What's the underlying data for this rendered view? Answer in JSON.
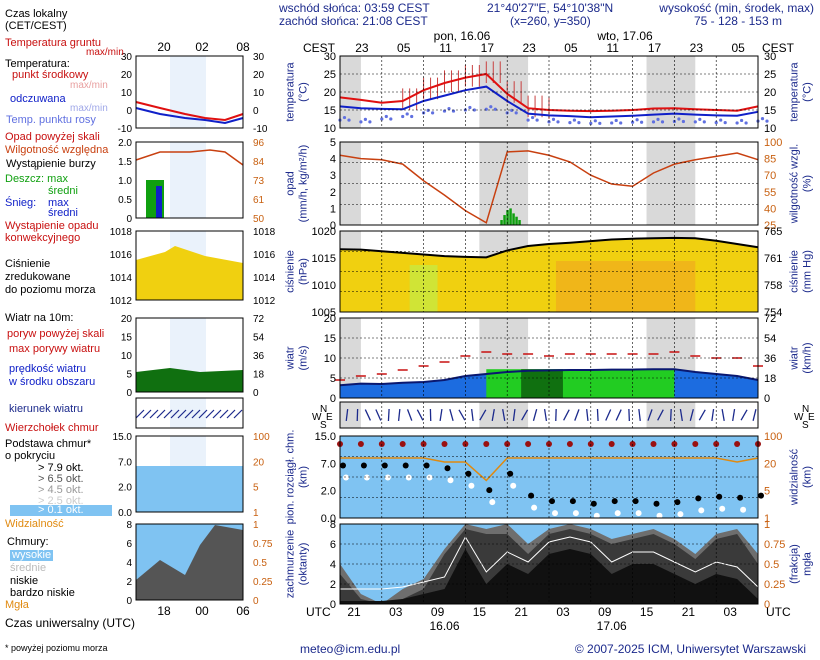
{
  "header": {
    "sunrise": "wschód słońca: 03:59 CEST",
    "sunset": "zachód słońca: 21:08 CEST",
    "coords": "21°40'27\"E, 54°10'38\"N",
    "grid": "(x=260, y=350)",
    "elev_title": "wysokość (min, środek, max)",
    "elev_values": "75 - 128 - 153 m"
  },
  "time_axis": {
    "cest_label": "CEST",
    "utc_label": "UTC",
    "top_hours": [
      "23",
      "05",
      "11",
      "17",
      "23",
      "05",
      "11",
      "17",
      "23",
      "05"
    ],
    "bottom_hours": [
      "21",
      "03",
      "09",
      "15",
      "21",
      "03",
      "09",
      "15",
      "21",
      "03"
    ],
    "days": [
      "pon, 16.06",
      "wto, 17.06"
    ],
    "bottom_dates": [
      "16.06",
      "17.06"
    ],
    "night_bands": [
      [
        0,
        3
      ],
      [
        20,
        27
      ],
      [
        44,
        51
      ]
    ],
    "total_hours": 60
  },
  "legend": {
    "time_title": "Czas lokalny\n(CET/CEST)",
    "time_hours": [
      "20",
      "02",
      "08"
    ],
    "temp_ground": "Temperatura gruntu",
    "temp_ground_range": "max/min",
    "temp_title": "Temperatura:",
    "temp_mid": "punkt środkowy",
    "temp_minmax": "max/min",
    "temp_felt": "odczuwana",
    "temp_felt_minmax": "max/min",
    "temp_dew": "Temp. punktu rosy",
    "temp_ticks": [
      "30",
      "20",
      "10",
      "0",
      "-10"
    ],
    "precip_over": "Opad powyżej skali",
    "humidity": "Wilgotność względna",
    "storm": "Wystąpienie burzy",
    "rain": "Deszcz: max",
    "rain_mean": "średni",
    "snow": "Śnieg:",
    "snow_max": "max",
    "snow_mean": "średni",
    "conv": "Wystąpienie opadu\nkonwekcyjnego",
    "precip_ticks": [
      "2.0",
      "1.5",
      "1.0",
      "0.5",
      "0"
    ],
    "humid_ticks": [
      "96",
      "84",
      "73",
      "61",
      "50"
    ],
    "pressure_title": "Ciśnienie\nzredukowane\ndo poziomu morza",
    "press_ticks": [
      "1018",
      "1016",
      "1014",
      "1012"
    ],
    "wind_title": "Wiatr na 10m:",
    "gust_over": "poryw powyżej skali",
    "gust_max": "max porywy wiatru",
    "wind_speed": "prędkość wiatru\nw środku obszaru",
    "wind_ticks": [
      "20",
      "15",
      "10",
      "5",
      "0"
    ],
    "wind_kmh_ticks": [
      "72",
      "54",
      "36",
      "18",
      "0"
    ],
    "wind_dir": "kierunek wiatru",
    "cloud_top": "Wierzchołek chmur",
    "cloud_base": "Podstawa chmur*\no pokryciu",
    "okta_79": "> 7.9 okt.",
    "okta_65": "> 6.5 okt.",
    "okta_45": "> 4.5 okt.",
    "okta_25": "> 2.5 okt.",
    "okta_01": "> 0.1 okt.",
    "cloud_ticks": [
      "15.0",
      "7.0",
      "2.0",
      "0.0"
    ],
    "vis_ticks": [
      "100",
      "20",
      "5",
      "1"
    ],
    "visibility": "Widzialność",
    "clouds": "Chmury:",
    "cl_high": "wysokie",
    "cl_mid": "średnie",
    "cl_low": "niskie",
    "cl_vlow": "bardzo niskie",
    "fog": "Mgła",
    "okta_ticks": [
      "8",
      "6",
      "4",
      "2",
      "0"
    ],
    "frac_ticks": [
      "1",
      "0.75",
      "0.5",
      "0.25",
      "0"
    ],
    "utc_title": "Czas uniwersalny (UTC)",
    "utc_hours": [
      "18",
      "00",
      "06"
    ],
    "footnote": "* powyżej poziomu morza"
  },
  "panels": {
    "temp": {
      "left": "temperatura\n(°C)",
      "right": "temperatura\n(°C)",
      "ticks": [
        "30",
        "25",
        "20",
        "15",
        "10"
      ]
    },
    "precip": {
      "left": "opad\n(mm/h, kg/m²/h)",
      "right": "wilgotność wzgl.\n(%)",
      "ticks": [
        "5",
        "4",
        "3",
        "2",
        "1",
        "0"
      ],
      "rticks": [
        "100",
        "85",
        "70",
        "55",
        "40",
        "25"
      ]
    },
    "press": {
      "left": "ciśnienie\n(hPa)",
      "right": "ciśnienie\n(mm Hg)",
      "ticks": [
        "1020",
        "1015",
        "1010",
        "1005"
      ],
      "rticks": [
        "765",
        "761",
        "758",
        "754"
      ]
    },
    "wind": {
      "left": "wiatr\n(m/s)",
      "right": "wiatr\n(km/h)",
      "ticks": [
        "20",
        "15",
        "10",
        "5",
        "0"
      ],
      "rticks": [
        "72",
        "54",
        "36",
        "18",
        "0"
      ]
    },
    "dir": {
      "compass": [
        "N",
        "W",
        "E",
        "S"
      ]
    },
    "cloud": {
      "left": "pion. rozciągł. chm.\n(km)",
      "right": "widzialność\n(km)",
      "ticks": [
        "15.0",
        "7.0",
        "2.0",
        "0.0"
      ],
      "rticks": [
        "100",
        "20",
        "5",
        "1"
      ]
    },
    "cover": {
      "left": "zachmurzenie\n(oktanty)",
      "right": "(frakcja)\nmgła",
      "ticks": [
        "8",
        "6",
        "4",
        "2",
        "0"
      ],
      "rticks": [
        "1",
        "0.75",
        "0.5",
        "0.25",
        "0"
      ]
    }
  },
  "footer": {
    "email": "meteo@icm.edu.pl",
    "copyright": "© 2007-2025 ICM, Uniwersytet Warszawski"
  },
  "colors": {
    "temp": "#e01010",
    "felt": "#1020c8",
    "dew": "#6070e0",
    "humidity": "#c84010",
    "rain": "#10a010",
    "pressure": "#f0d010",
    "wind_light": "#22cc22",
    "wind_dark": "#107010",
    "wind_blue": "#1c6ce0",
    "sky": "#7fc3f2",
    "visibility": "#e08a10",
    "night": "#d9d9d9"
  },
  "chart_data": [
    {
      "type": "line",
      "name": "temperature",
      "x_unit": "hours from 16.06 21 UTC",
      "x": [
        0,
        3,
        6,
        9,
        12,
        15,
        18,
        21,
        24,
        27,
        30,
        33,
        36,
        39,
        42,
        45,
        48,
        51,
        54,
        57,
        60
      ],
      "series": [
        {
          "values": [
            18.5,
            17.8,
            17,
            17.5,
            20.5,
            22.5,
            24,
            25,
            19.5,
            15.5,
            15,
            14.8,
            14.7,
            14.8,
            15,
            15.4,
            15.5,
            15.2,
            15,
            14.8,
            16
          ]
        },
        {
          "values": [
            16,
            15.5,
            15.3,
            15.2,
            17.5,
            19,
            20.5,
            21.5,
            17.5,
            14,
            13.5,
            13.3,
            13,
            13.2,
            13.4,
            13.7,
            14,
            13.7,
            13.5,
            13.4,
            14.5
          ]
        },
        {
          "values": [
            12.5,
            12,
            12.8,
            13.5,
            14.5,
            15,
            15.3,
            15.5,
            14.5,
            12.5,
            12,
            11.8,
            11.6,
            11.7,
            11.9,
            12,
            12.1,
            12,
            11.8,
            11.7,
            12.2
          ]
        }
      ],
      "ylim": [
        10,
        30
      ]
    },
    {
      "type": "bar",
      "name": "precip_humidity",
      "x": [
        0,
        3,
        6,
        9,
        12,
        15,
        18,
        21,
        24,
        27,
        30,
        33,
        36,
        39,
        42,
        45,
        48,
        51,
        54,
        57,
        60
      ],
      "series": [
        {
          "values": [
            0,
            0,
            0,
            0,
            0,
            0,
            0,
            0,
            0.4,
            0.9,
            0.5,
            0,
            0,
            0,
            0,
            0,
            0,
            0,
            0,
            0,
            0
          ]
        },
        {
          "values": [
            88,
            85,
            84,
            80,
            65,
            52,
            38,
            27,
            91,
            92,
            88,
            82,
            70,
            62,
            60,
            72,
            80,
            84,
            87,
            90,
            84
          ]
        }
      ],
      "ylim": [
        0,
        5
      ],
      "y2lim": [
        25,
        100
      ]
    },
    {
      "type": "area",
      "name": "pressure",
      "x": [
        0,
        3,
        6,
        9,
        12,
        15,
        18,
        21,
        24,
        27,
        30,
        33,
        36,
        39,
        42,
        45,
        48,
        51,
        54,
        57,
        60
      ],
      "series": [
        {
          "values": [
            1017.5,
            1017.4,
            1017,
            1016.6,
            1016.2,
            1015.8,
            1015.6,
            1015.5,
            1017.2,
            1018.3,
            1018.8,
            1019.1,
            1019.5,
            1019.9,
            1020.1,
            1020.2,
            1020.3,
            1020.2,
            1019.6,
            1018.8,
            1018
          ]
        }
      ],
      "ylim": [
        1002,
        1022
      ]
    },
    {
      "type": "area",
      "name": "wind",
      "x": [
        0,
        3,
        6,
        9,
        12,
        15,
        18,
        21,
        24,
        27,
        30,
        33,
        36,
        39,
        42,
        45,
        48,
        51,
        54,
        57,
        60
      ],
      "series": [
        {
          "values": [
            3.2,
            3.6,
            3.5,
            3.8,
            4,
            4.5,
            5.5,
            6,
            6.5,
            6.8,
            6.9,
            7,
            7,
            7.1,
            7.1,
            7.2,
            7.2,
            6.5,
            6,
            5.5,
            4.5
          ]
        },
        {
          "values": [
            4.5,
            5.5,
            6,
            7,
            8,
            9,
            10.5,
            11.5,
            11,
            11,
            10.5,
            11,
            11,
            11,
            11,
            11,
            11.5,
            10.5,
            10,
            10,
            8
          ]
        }
      ],
      "ylim": [
        0,
        20
      ]
    },
    {
      "type": "scatter",
      "name": "clouds_visibility",
      "x": [
        0,
        3,
        6,
        9,
        12,
        15,
        18,
        21,
        24,
        27,
        30,
        33,
        36,
        39,
        42,
        45,
        48,
        51,
        54,
        57,
        60
      ],
      "series": [
        {
          "values": [
            8.5,
            8.5,
            8.5,
            8.5,
            8.5,
            8,
            7,
            4,
            7,
            3,
            2,
            2,
            1.5,
            2,
            2,
            1.5,
            1.8,
            2.5,
            2.8,
            2.6,
            3
          ]
        },
        {
          "values": [
            40,
            40,
            40,
            40,
            40,
            35,
            35,
            12,
            40,
            40,
            40,
            40,
            40,
            40,
            40,
            40,
            40,
            40,
            40,
            35,
            40
          ]
        }
      ],
      "ylim": [
        0,
        15
      ]
    },
    {
      "type": "area",
      "name": "cloud_cover",
      "x": [
        0,
        3,
        6,
        9,
        12,
        15,
        18,
        21,
        24,
        27,
        30,
        33,
        36,
        39,
        42,
        45,
        48,
        51,
        54,
        57,
        60
      ],
      "series": [
        {
          "values": [
            4,
            1,
            0,
            1.5,
            2.5,
            5.5,
            8,
            7.5,
            8,
            6,
            7.5,
            8,
            7.5,
            6.5,
            7,
            7.5,
            6.5,
            5,
            7,
            7.5,
            5
          ]
        },
        {
          "values": [
            3,
            0.5,
            0,
            0.5,
            1.5,
            5,
            7.5,
            7,
            7,
            5,
            7,
            7.5,
            7,
            6,
            6.5,
            7,
            6,
            4.5,
            6.5,
            7,
            4
          ]
        },
        {
          "values": [
            0.3,
            0.3,
            0.3,
            0.5,
            1,
            1.5,
            5.5,
            2,
            4,
            3,
            5,
            5.5,
            5,
            3,
            4,
            4,
            3,
            2,
            3,
            2.5,
            0.5
          ]
        }
      ],
      "ylim": [
        0,
        8
      ]
    }
  ]
}
